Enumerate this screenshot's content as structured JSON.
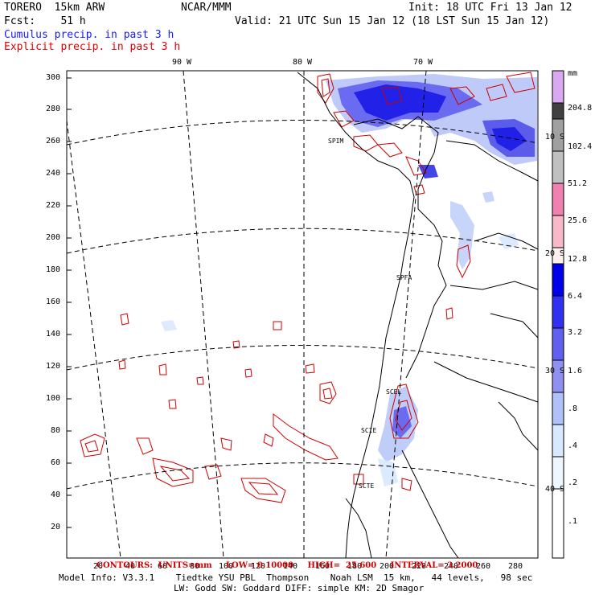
{
  "header": {
    "model": "TORERO  15km ARW",
    "org": "NCAR/MMM",
    "init": "Init: 18 UTC Fri 13 Jan 12",
    "fcst": "Fcst:    51 h",
    "valid": "Valid: 21 UTC Sun 15 Jan 12 (18 LST Sun 15 Jan 12)",
    "cumulus": "Cumulus precip. in past 3 h",
    "explicit": "Explicit precip. in past 3 h"
  },
  "map": {
    "lon_labels": [
      "90 W",
      "80 W",
      "70 W"
    ],
    "lat_labels": [
      "10 S",
      "20 S",
      "30 S",
      "40 S"
    ],
    "y_ticks": [
      "300",
      "280",
      "260",
      "240",
      "220",
      "200",
      "180",
      "160",
      "140",
      "120",
      "100",
      "80",
      "60",
      "40",
      "20"
    ],
    "x_ticks": [
      "20",
      "40",
      "60",
      "80",
      "100",
      "120",
      "140",
      "160",
      "180",
      "200",
      "220",
      "240",
      "260",
      "280"
    ],
    "stations": [
      "SPIM",
      "SPFA",
      "SCEL",
      "SCIE",
      "SCTE"
    ]
  },
  "colorbar": {
    "unit": "mm",
    "labels": [
      "204.8",
      "102.4",
      "51.2",
      "25.6",
      "12.8",
      "6.4",
      "3.2",
      "1.6",
      ".8",
      ".4",
      ".2",
      ".1"
    ],
    "colors": [
      "#d8a8f0",
      "#404040",
      "#a0a0a0",
      "#c0c0c0",
      "#f080b0",
      "#f8b8c8",
      "#fff0f0",
      "#0000e8",
      "#3030f0",
      "#6060f0",
      "#9090f0",
      "#b0c0f8",
      "#d8e8ff",
      "#eef6ff",
      "#ffffff"
    ]
  },
  "footer": {
    "contours": "CONTOURS:  UNITS=mm     LOW= 0.10000     HIGH=  25.600     INTERVAL= 3.2000",
    "info1": "Model Info: V3.3.1    Tiedtke YSU PBL  Thompson    Noah LSM  15 km,   44 levels,   98 sec",
    "info2": "LW: Godd SW: Goddard DIFF: simple KM: 2D Smagor"
  }
}
